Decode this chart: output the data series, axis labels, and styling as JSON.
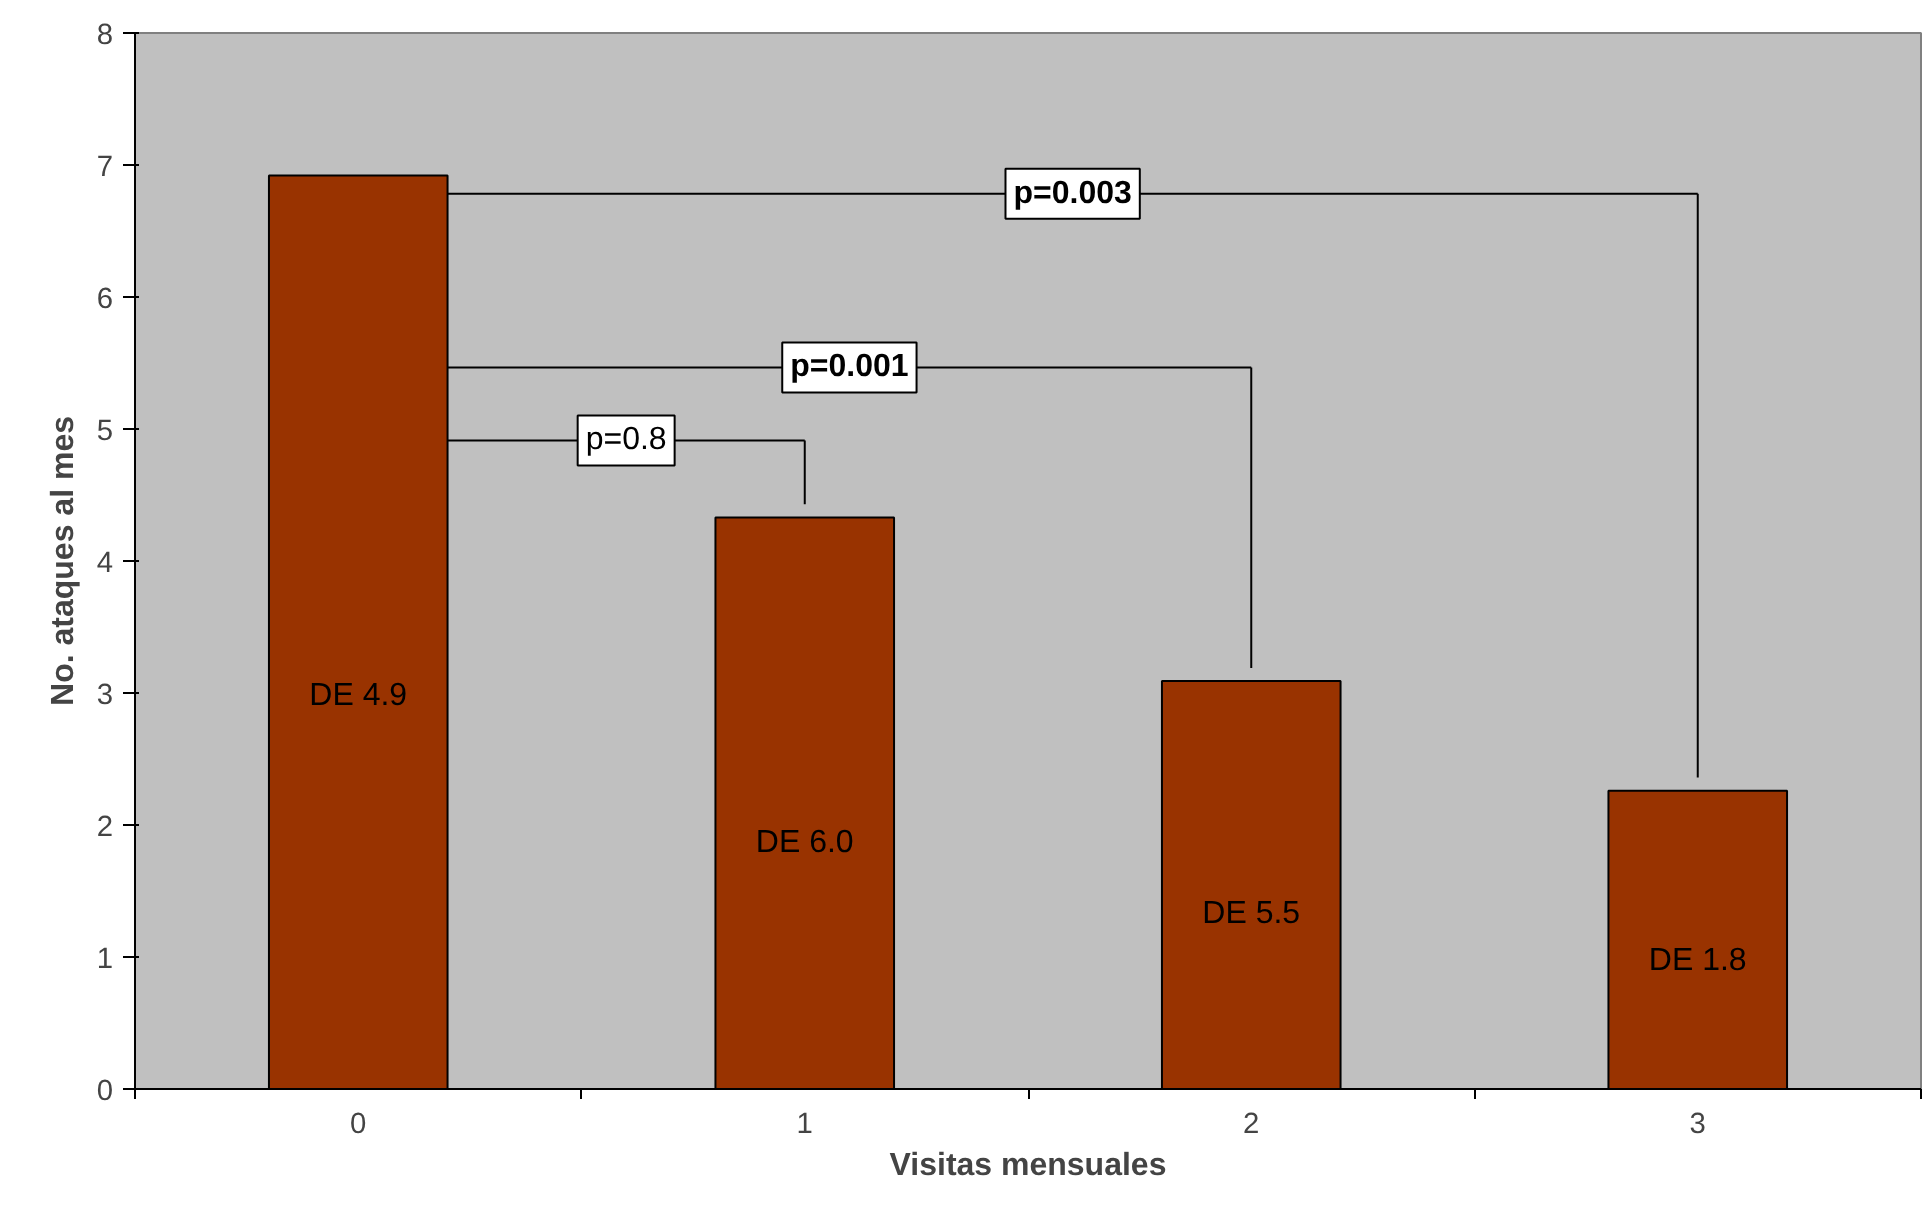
{
  "chart_data": {
    "type": "bar",
    "xlabel": "Visitas mensuales",
    "ylabel": "No. ataques al mes",
    "categories": [
      "0",
      "1",
      "2",
      "3"
    ],
    "values": [
      6.92,
      4.33,
      3.09,
      2.26
    ],
    "color": "#993300",
    "ylim": [
      0,
      8
    ],
    "yticks": [
      0,
      1,
      2,
      3,
      4,
      5,
      6,
      7,
      8
    ],
    "grid": false,
    "annotations": [
      "DE 4.9",
      "DE 6.0",
      "DE 5.5",
      "DE 1.8",
      "p=0.8",
      "p=0.001",
      "p=0.003"
    ]
  }
}
